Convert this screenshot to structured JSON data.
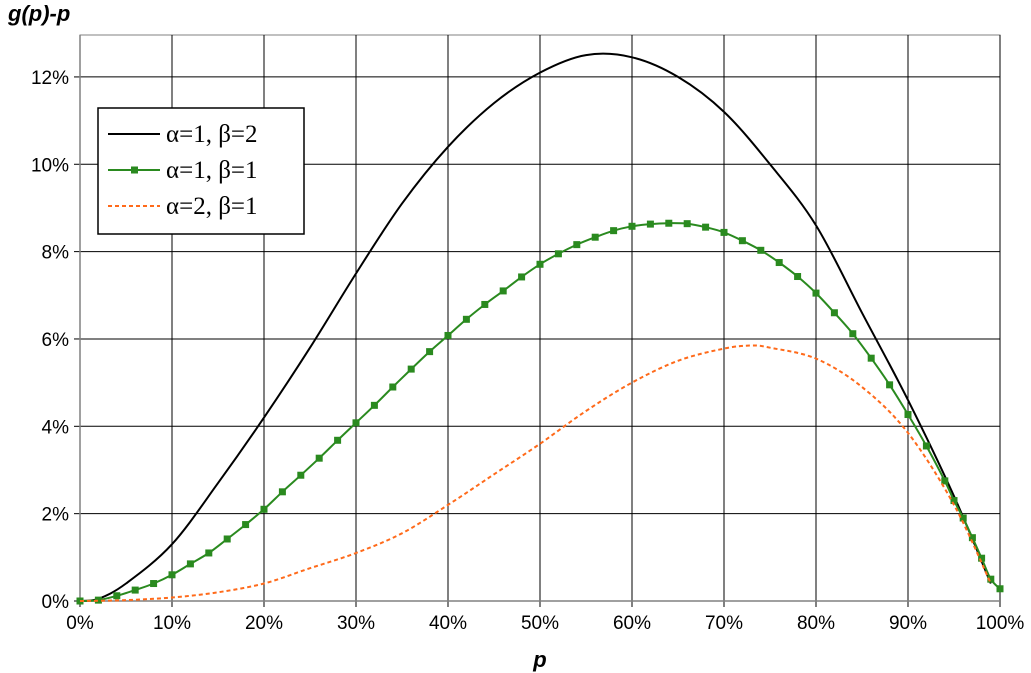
{
  "chart_data": {
    "type": "line",
    "title": "",
    "xlabel": "p",
    "ylabel": "g(p)-p",
    "xlim": [
      0,
      1
    ],
    "ylim": [
      0,
      0.12
    ],
    "grid": true,
    "legend_position": "top-left",
    "x_tick_labels": [
      "0%",
      "10%",
      "20%",
      "30%",
      "40%",
      "50%",
      "60%",
      "70%",
      "80%",
      "90%",
      "100%"
    ],
    "y_tick_labels": [
      "0%",
      "2%",
      "4%",
      "6%",
      "8%",
      "10%",
      "12%"
    ],
    "series": [
      {
        "name": "α=1, β=2",
        "color": "#000000",
        "style": "solid",
        "markers": false,
        "x": [
          0.0,
          0.02,
          0.05,
          0.1,
          0.15,
          0.2,
          0.25,
          0.3,
          0.35,
          0.4,
          0.45,
          0.5,
          0.55,
          0.6,
          0.65,
          0.7,
          0.75,
          0.8,
          0.85,
          0.9,
          0.95,
          0.99
        ],
        "y": [
          0.0,
          0.0005,
          0.004,
          0.013,
          0.027,
          0.042,
          0.058,
          0.075,
          0.091,
          0.104,
          0.114,
          0.121,
          0.125,
          0.1245,
          0.12,
          0.112,
          0.1,
          0.086,
          0.066,
          0.046,
          0.024,
          0.004
        ]
      },
      {
        "name": "α=1, β=1",
        "color": "#2a8a1f",
        "style": "solid",
        "markers": true,
        "x": [
          0.0,
          0.02,
          0.04,
          0.06,
          0.08,
          0.1,
          0.12,
          0.14,
          0.16,
          0.18,
          0.2,
          0.22,
          0.24,
          0.26,
          0.28,
          0.3,
          0.32,
          0.34,
          0.36,
          0.38,
          0.4,
          0.42,
          0.44,
          0.46,
          0.48,
          0.5,
          0.52,
          0.54,
          0.56,
          0.58,
          0.6,
          0.62,
          0.64,
          0.66,
          0.68,
          0.7,
          0.72,
          0.74,
          0.76,
          0.78,
          0.8,
          0.82,
          0.84,
          0.86,
          0.88,
          0.9,
          0.92,
          0.94,
          0.95,
          0.96,
          0.97,
          0.98,
          0.99,
          1.0
        ],
        "y": [
          0.0,
          0.0002,
          0.0012,
          0.0025,
          0.004,
          0.006,
          0.0085,
          0.011,
          0.0142,
          0.0175,
          0.021,
          0.025,
          0.0288,
          0.0327,
          0.0368,
          0.0408,
          0.0448,
          0.049,
          0.0531,
          0.0571,
          0.0608,
          0.0645,
          0.0679,
          0.071,
          0.0742,
          0.0771,
          0.0795,
          0.0816,
          0.0833,
          0.0848,
          0.0858,
          0.0863,
          0.0865,
          0.0864,
          0.0856,
          0.0844,
          0.0825,
          0.0803,
          0.0775,
          0.0743,
          0.0705,
          0.066,
          0.0612,
          0.0556,
          0.0495,
          0.0427,
          0.0355,
          0.0275,
          0.023,
          0.019,
          0.0145,
          0.0098,
          0.005,
          0.0028
        ]
      },
      {
        "name": "α=2, β=1",
        "color": "#ff6a1a",
        "style": "dashed",
        "markers": false,
        "x": [
          0.0,
          0.05,
          0.1,
          0.15,
          0.2,
          0.25,
          0.3,
          0.35,
          0.4,
          0.45,
          0.5,
          0.55,
          0.6,
          0.65,
          0.7,
          0.73,
          0.75,
          0.8,
          0.85,
          0.9,
          0.95,
          0.99
        ],
        "y": [
          0.0,
          0.0002,
          0.0008,
          0.002,
          0.004,
          0.0075,
          0.011,
          0.0155,
          0.022,
          0.029,
          0.036,
          0.0435,
          0.05,
          0.055,
          0.0578,
          0.0585,
          0.058,
          0.0555,
          0.049,
          0.0385,
          0.022,
          0.004
        ]
      }
    ]
  }
}
